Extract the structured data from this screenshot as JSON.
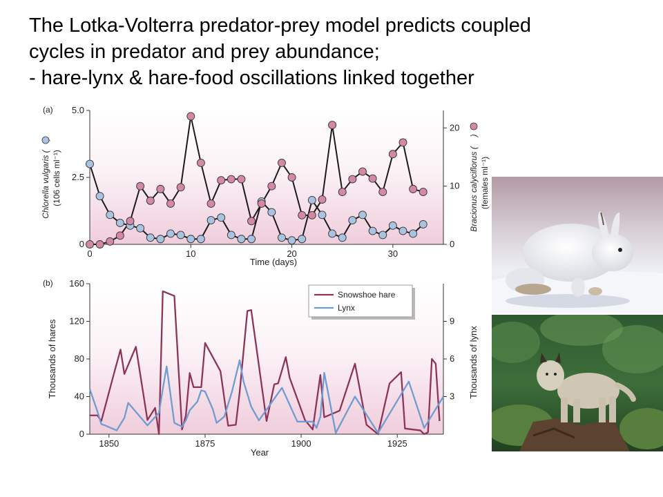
{
  "slide": {
    "title_lines": [
      "The Lotka-Volterra predator-prey model predicts coupled",
      "cycles in predator and prey abundance;",
      "- hare-lynx & hare-food oscillations linked together"
    ]
  },
  "colors": {
    "chlorella_fill": "#a9c3e1",
    "bracionus_fill": "#d389a5",
    "hare_line": "#8b3358",
    "lynx_line": "#6f9bd0",
    "panel_gradient_top": "#ffffff",
    "panel_gradient_bottom": "#f0cddc"
  },
  "chart_data": [
    {
      "type": "scatter",
      "panel_label": "(a)",
      "xlabel": "Time (days)",
      "ylabel_left": [
        "Chlorella vulgaris (",
        ")",
        "(106 cells ml⁻¹)"
      ],
      "ylabel_right": [
        "Bracionus calyciflorus (",
        ")",
        "(females ml⁻¹)"
      ],
      "xlim": [
        0,
        35
      ],
      "ylim_left": [
        0,
        5.0
      ],
      "ylim_right": [
        0,
        23
      ],
      "x_ticks": [
        0,
        10,
        20,
        30
      ],
      "x_tick_labels": [
        "0",
        "10",
        "20",
        "30"
      ],
      "y_ticks_left": [
        0,
        2.5,
        5.0
      ],
      "y_tick_labels_left": [
        "0",
        "2.5",
        "5.0"
      ],
      "y_ticks_right": [
        0,
        10,
        20
      ],
      "y_tick_labels_right": [
        "0",
        "10",
        "20"
      ],
      "series": [
        {
          "axis": "left",
          "x": [
            0,
            1,
            2,
            3,
            4,
            5,
            6,
            7,
            8,
            9,
            10,
            11,
            12,
            13,
            14,
            15,
            16,
            17,
            18,
            19,
            20,
            21,
            22,
            23,
            24,
            25,
            26,
            27,
            28,
            29,
            30,
            31,
            32,
            33
          ],
          "values": [
            3.0,
            1.8,
            1.1,
            0.8,
            0.7,
            0.6,
            0.25,
            0.2,
            0.4,
            0.35,
            0.2,
            0.2,
            0.9,
            1.0,
            0.35,
            0.2,
            0.2,
            1.6,
            1.2,
            0.25,
            0.15,
            0.2,
            1.65,
            1.1,
            0.4,
            0.25,
            0.9,
            1.1,
            0.5,
            0.35,
            0.7,
            0.5,
            0.4,
            0.75
          ]
        },
        {
          "axis": "right",
          "x": [
            0,
            1,
            2,
            3,
            4,
            5,
            6,
            7,
            8,
            9,
            10,
            11,
            12,
            13,
            14,
            15,
            16,
            17,
            18,
            19,
            20,
            21,
            22,
            23,
            24,
            25,
            26,
            27,
            28,
            29,
            30,
            31,
            32,
            33
          ],
          "values": [
            0,
            0,
            0.5,
            1.5,
            4,
            10,
            7.5,
            9.5,
            7,
            9.8,
            22,
            14,
            7,
            11,
            11.2,
            11.2,
            4,
            7,
            10,
            14,
            11.5,
            5,
            5,
            7.7,
            20.5,
            9,
            11.2,
            12.5,
            11.3,
            9,
            15.5,
            17.5,
            9.5,
            9
          ]
        }
      ]
    },
    {
      "type": "line",
      "panel_label": "(b)",
      "xlabel": "Year",
      "ylabel_left": "Thousands of hares",
      "ylabel_right": "Thousands of lynx",
      "xlim": [
        1845,
        1937
      ],
      "ylim_left": [
        0,
        160
      ],
      "ylim_right": [
        0,
        12
      ],
      "x_ticks": [
        1850,
        1875,
        1900,
        1925
      ],
      "x_tick_labels": [
        "1850",
        "1875",
        "1900",
        "1925"
      ],
      "y_ticks_left": [
        0,
        40,
        80,
        120,
        160
      ],
      "y_tick_labels_left": [
        "0",
        "40",
        "80",
        "120",
        "160"
      ],
      "y_ticks_right": [
        3,
        6,
        9
      ],
      "y_tick_labels_right": [
        "3",
        "6",
        "9"
      ],
      "legend": {
        "placement": "top-right",
        "entries": [
          "Snowshoe hare",
          "Lynx"
        ]
      },
      "series": [
        {
          "name": "Snowshoe hare",
          "axis": "left",
          "x": [
            1845,
            1847,
            1848,
            1851,
            1853,
            1854,
            1857,
            1860,
            1862,
            1863,
            1864,
            1867,
            1869,
            1870,
            1871,
            1872,
            1874,
            1875,
            1879,
            1881,
            1883,
            1884,
            1886,
            1887,
            1891,
            1893,
            1894,
            1896,
            1897,
            1901,
            1903,
            1905,
            1906,
            1910,
            1914,
            1917,
            1920,
            1923,
            1926,
            1927,
            1931,
            1932,
            1933,
            1934,
            1935,
            1936
          ],
          "values": [
            20,
            20,
            14,
            60,
            90,
            64,
            93,
            15,
            28,
            0,
            152,
            147,
            5,
            20,
            65,
            50,
            50,
            97,
            67,
            9,
            10,
            45,
            131,
            132,
            14,
            53,
            54,
            82,
            60,
            15,
            5,
            63,
            18,
            25,
            75,
            10,
            0,
            54,
            66,
            6,
            4,
            0,
            2,
            80,
            75,
            14
          ]
        },
        {
          "name": "Lynx",
          "axis": "right",
          "x": [
            1845,
            1847,
            1848,
            1849,
            1852,
            1854,
            1855,
            1860,
            1863,
            1864,
            1865,
            1867,
            1869,
            1870,
            1871,
            1873,
            1874,
            1875,
            1877,
            1878,
            1880,
            1882,
            1884,
            1885,
            1887,
            1889,
            1892,
            1895,
            1899,
            1903,
            1904,
            1905,
            1906,
            1909,
            1914,
            1920,
            1928,
            1932,
            1937
          ],
          "values": [
            3.6,
            1.8,
            0.8,
            0.7,
            0.3,
            1.3,
            2.5,
            0.7,
            1.7,
            3.6,
            5.4,
            0.9,
            0.6,
            1.1,
            1.9,
            2.6,
            3.5,
            3.4,
            2.0,
            0.9,
            1.4,
            3.4,
            5.9,
            4.2,
            2.2,
            1.1,
            2.4,
            3.7,
            1.0,
            1.0,
            0.5,
            1.4,
            4.9,
            0.1,
            3.0,
            0.1,
            4.2,
            0.5,
            3.0
          ]
        }
      ]
    }
  ],
  "photos": [
    {
      "name": "snowshoe-hare-photo"
    },
    {
      "name": "lynx-photo"
    }
  ]
}
